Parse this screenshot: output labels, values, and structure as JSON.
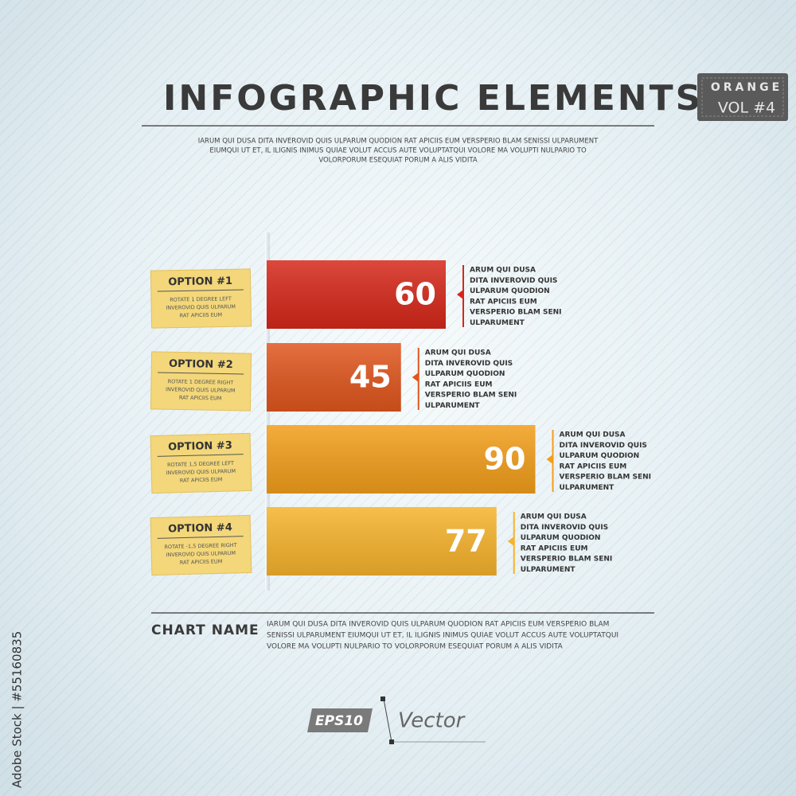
{
  "header": {
    "title": "INFOGRAPHIC ELEMENTS",
    "description": [
      "IARUM QUI DUSA DITA INVEROVID QUIS ULPARUM QUODION RAT APICIIS EUM VERSPERIO BLAM SENISSI ULPARUMENT",
      "EIUMQUI UT ET, IL ILIGNIS INIMUS QUIAE VOLUT ACCUS AUTE VOLUPTATQUI VOLORE MA VOLUPTI NULPARIO TO",
      "VOLORPORUM ESEQUIAT PORUM A ALIS VIDITA"
    ]
  },
  "badge": {
    "line1": "ORANGE",
    "line2": "VOL #4"
  },
  "chart_data": {
    "type": "bar",
    "orientation": "horizontal",
    "categories": [
      "OPTION #1",
      "OPTION #2",
      "OPTION #3",
      "OPTION #4"
    ],
    "values": [
      60,
      45,
      90,
      77
    ],
    "colors": [
      "#d6281a",
      "#e0561e",
      "#f29e1a",
      "#f6b32c"
    ],
    "category_notes": [
      [
        "ROTATE 1 DEGREE LEFT",
        "INVEROVID QUIS ULPARUM",
        "RAT APICIIS EUM"
      ],
      [
        "ROTATE 1 DEGREE RIGHT",
        "INVEROVID QUIS ULPARUM",
        "RAT APICIIS EUM"
      ],
      [
        "ROTATE 1,5 DEGREE LEFT",
        "INVEROVID QUIS ULPARUM",
        "RAT APICIIS EUM"
      ],
      [
        "ROTATE -1,5 DEGREE RIGHT",
        "INVEROVID QUIS ULPARUM",
        "RAT APICIIS EUM"
      ]
    ],
    "side_notes": [
      [
        "ARUM QUI DUSA",
        "DITA INVEROVID QUIS",
        "ULPARUM QUODION",
        "RAT APICIIS EUM",
        "VERSPERIO BLAM SENI",
        "ULPARUMENT"
      ],
      [
        "ARUM QUI DUSA",
        "DITA INVEROVID QUIS",
        "ULPARUM QUODION",
        "RAT APICIIS EUM",
        "VERSPERIO BLAM SENI",
        "ULPARUMENT"
      ],
      [
        "ARUM QUI DUSA",
        "DITA INVEROVID QUIS",
        "ULPARUM QUODION",
        "RAT APICIIS EUM",
        "VERSPERIO BLAM SENI",
        "ULPARUMENT"
      ],
      [
        "ARUM QUI DUSA",
        "DITA INVEROVID QUIS",
        "ULPARUM QUODION",
        "RAT APICIIS EUM",
        "VERSPERIO BLAM SENI",
        "ULPARUMENT"
      ]
    ]
  },
  "footer": {
    "chart_name": "CHART NAME",
    "text": [
      "IARUM QUI DUSA DITA INVEROVID QUIS ULPARUM QUODION RAT APICIIS EUM VERSPERIO BLAM",
      "SENISSI ULPARUMENT EIUMQUI UT ET, IL ILIGNIS INIMUS QUIAE VOLUT ACCUS AUTE VOLUPTATQUI",
      "VOLORE MA VOLUPTI NULPARIO TO VOLORPORUM ESEQUIAT PORUM A ALIS VIDITA"
    ],
    "logo_eps": "EPS10",
    "logo_vector": "Vector",
    "stock_id": "Adobe Stock | #55160835"
  }
}
